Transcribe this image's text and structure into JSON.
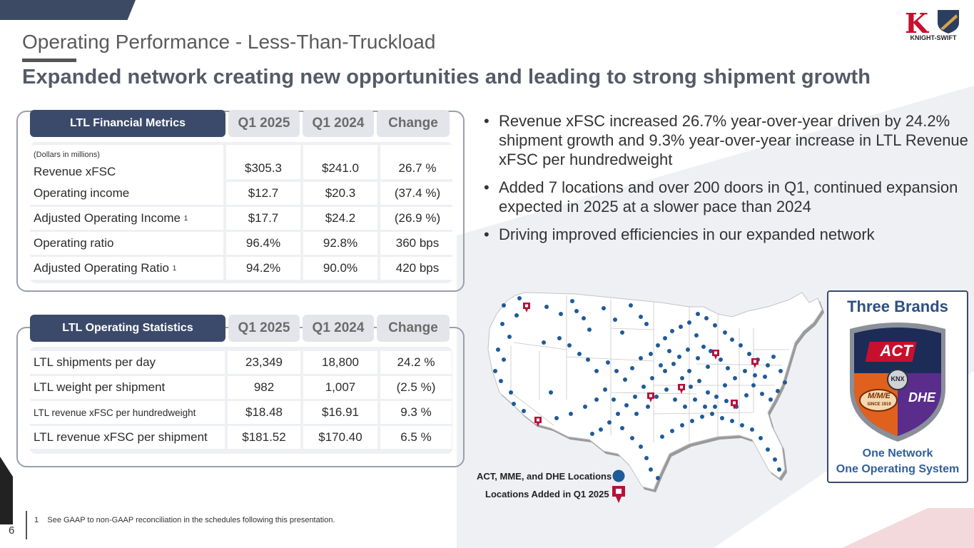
{
  "title": "Operating Performance - Less-Than-Truckload",
  "subtitle": "Expanded network creating new opportunities and leading to strong shipment growth",
  "logo": {
    "mark": "K",
    "text": "KNIGHT-SWIFT"
  },
  "financial": {
    "header": [
      "LTL Financial Metrics",
      "Q1 2025",
      "Q1 2024",
      "Change"
    ],
    "note": "(Dollars in millions)",
    "rows": [
      {
        "label": "Revenue xFSC",
        "sup": "",
        "q1_2025": "$305.3",
        "q1_2024": "$241.0",
        "change": "26.7 %"
      },
      {
        "label": "Operating income",
        "sup": "",
        "q1_2025": "$12.7",
        "q1_2024": "$20.3",
        "change": "(37.4 %)"
      },
      {
        "label": "Adjusted Operating Income",
        "sup": "1",
        "q1_2025": "$17.7",
        "q1_2024": "$24.2",
        "change": "(26.9 %)"
      },
      {
        "label": "Operating ratio",
        "sup": "",
        "q1_2025": "96.4%",
        "q1_2024": "92.8%",
        "change": "360 bps"
      },
      {
        "label": "Adjusted Operating Ratio",
        "sup": "1",
        "q1_2025": "94.2%",
        "q1_2024": "90.0%",
        "change": "420 bps"
      }
    ]
  },
  "statistics": {
    "header": [
      "LTL Operating Statistics",
      "Q1 2025",
      "Q1 2024",
      "Change"
    ],
    "rows": [
      {
        "label": "LTL shipments per day",
        "q1_2025": "23,349",
        "q1_2024": "18,800",
        "change": "24.2 %"
      },
      {
        "label": "LTL weight per shipment",
        "q1_2025": "982",
        "q1_2024": "1,007",
        "change": "(2.5 %)"
      },
      {
        "label": "LTL revenue xFSC per hundredweight",
        "q1_2025": "$18.48",
        "q1_2024": "$16.91",
        "change": "9.3 %"
      },
      {
        "label": "LTL revenue xFSC per shipment",
        "q1_2025": "$181.52",
        "q1_2024": "$170.40",
        "change": "6.5 %"
      }
    ]
  },
  "bullets": [
    "Revenue xFSC increased 26.7% year-over-year driven by 24.2% shipment growth and 9.3% year-over-year increase in LTL Revenue xFSC per hundredweight",
    "Added 7 locations and over 200 doors in Q1, continued expansion expected in 2025 at a slower pace than 2024",
    "Driving improved efficiencies in our expanded network"
  ],
  "brands": {
    "title": "Three Brands",
    "act": "ACT",
    "knx": "KNX",
    "mme": "M/M/E",
    "mme_since": "SINCE 1919",
    "dhe": "DHE",
    "footer1": "One Network",
    "footer2": "One Operating System"
  },
  "legend": {
    "locations": "ACT, MME, and DHE Locations",
    "added": "Locations Added in Q1  2025"
  },
  "colors": {
    "navy": "#3b4a6b",
    "dot": "#1f5a9a",
    "pin": "#b5123a"
  },
  "page_number": "6",
  "footnote_num": "1",
  "footnote": "See GAAP to non-GAAP reconciliation in the schedules following this presentation."
}
